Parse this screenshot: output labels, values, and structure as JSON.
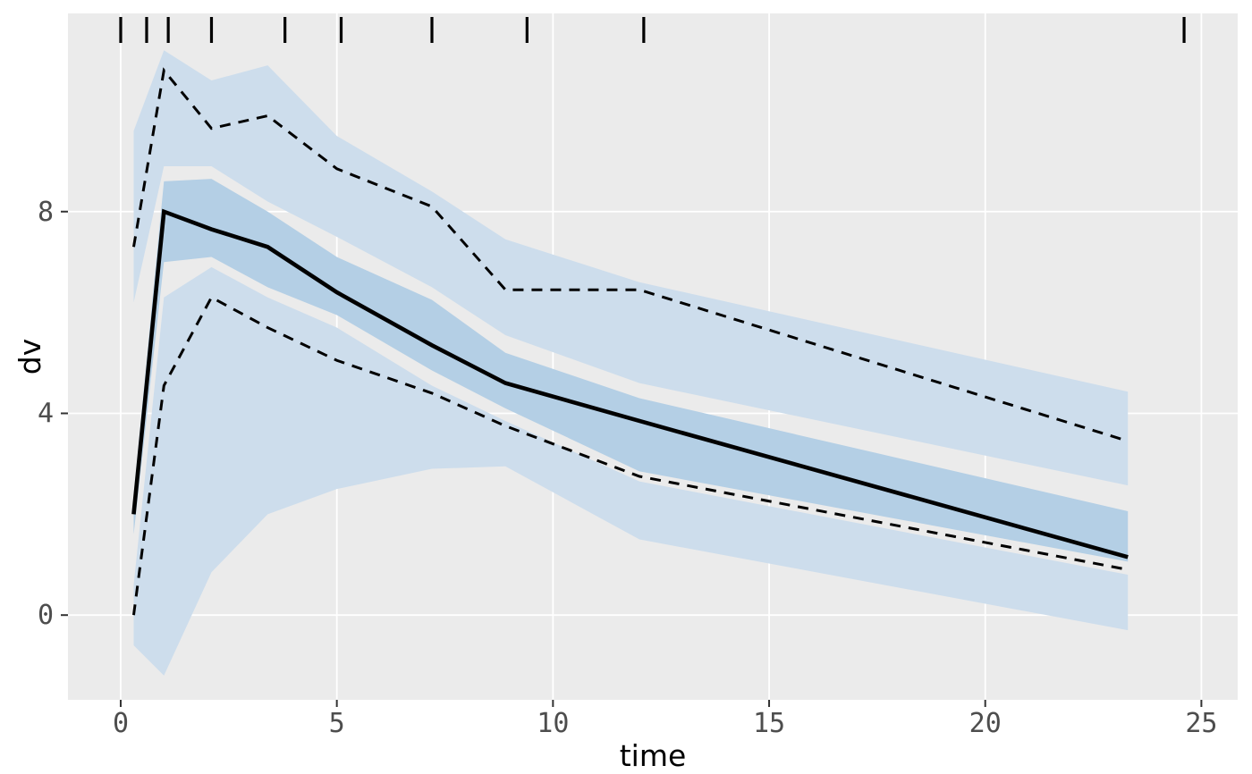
{
  "figure": {
    "kind": "vpc-plot",
    "background": "#ffffff"
  },
  "chart_data": {
    "type": "line",
    "title": "",
    "xlabel": "time",
    "ylabel": "dv",
    "x_ticks": [
      0,
      5,
      10,
      15,
      20,
      25
    ],
    "y_ticks": [
      0,
      4,
      8
    ],
    "x_domain": [
      -1.22,
      25.84
    ],
    "y_domain": [
      -1.68,
      11.93
    ],
    "grid": true,
    "legend_position": "none",
    "x": [
      0.3,
      1.0,
      2.1,
      3.4,
      5.0,
      7.2,
      8.9,
      12.0,
      23.3
    ],
    "series": [
      {
        "name": "median",
        "line_style": "solid",
        "color": "#000000",
        "values": [
          2.0,
          8.0,
          7.65,
          7.3,
          6.4,
          5.35,
          4.6,
          3.85,
          1.15
        ]
      },
      {
        "name": "upper_percentile",
        "line_style": "dashed",
        "color": "#000000",
        "values": [
          7.3,
          10.8,
          9.65,
          9.9,
          8.85,
          8.1,
          6.45,
          6.45,
          3.45
        ]
      },
      {
        "name": "lower_percentile",
        "line_style": "dashed",
        "color": "#000000",
        "values": [
          0.0,
          4.55,
          6.3,
          5.7,
          5.05,
          4.4,
          3.75,
          2.75,
          0.9
        ]
      }
    ],
    "ribbons": [
      {
        "name": "upper_percentile_ci",
        "color": "#cdddec",
        "hi": [
          9.6,
          11.2,
          10.6,
          10.9,
          9.5,
          8.4,
          7.45,
          6.6,
          4.43
        ],
        "lo": [
          6.2,
          8.9,
          8.9,
          8.2,
          7.5,
          6.5,
          5.55,
          4.6,
          2.57
        ]
      },
      {
        "name": "lower_percentile_ci",
        "color": "#cdddec",
        "hi": [
          0.6,
          6.3,
          6.9,
          6.3,
          5.7,
          4.55,
          3.85,
          2.65,
          0.8
        ],
        "lo": [
          -0.6,
          -1.2,
          0.85,
          2.0,
          2.5,
          2.9,
          2.95,
          1.5,
          -0.3
        ]
      },
      {
        "name": "median_ci",
        "color": "#b4cfe5",
        "hi": [
          2.4,
          8.6,
          8.65,
          8.0,
          7.1,
          6.25,
          5.2,
          4.3,
          2.06
        ],
        "lo": [
          1.6,
          7.0,
          7.1,
          6.5,
          5.95,
          4.85,
          4.1,
          2.85,
          1.06
        ]
      }
    ],
    "rug_times": [
      0,
      0.6,
      1.1,
      2.1,
      3.8,
      5.1,
      7.2,
      9.4,
      12.1,
      24.6
    ],
    "colors": {
      "panel_background": "#ebebeb",
      "gridline": "#ffffff",
      "ribbon_outer": "#cdddec",
      "ribbon_middle": "#b4cfe5",
      "line": "#000000",
      "rug": "#000000",
      "axis_tick": "#333333",
      "tick_label": "#4d4d4d",
      "axis_title": "#000000"
    }
  }
}
